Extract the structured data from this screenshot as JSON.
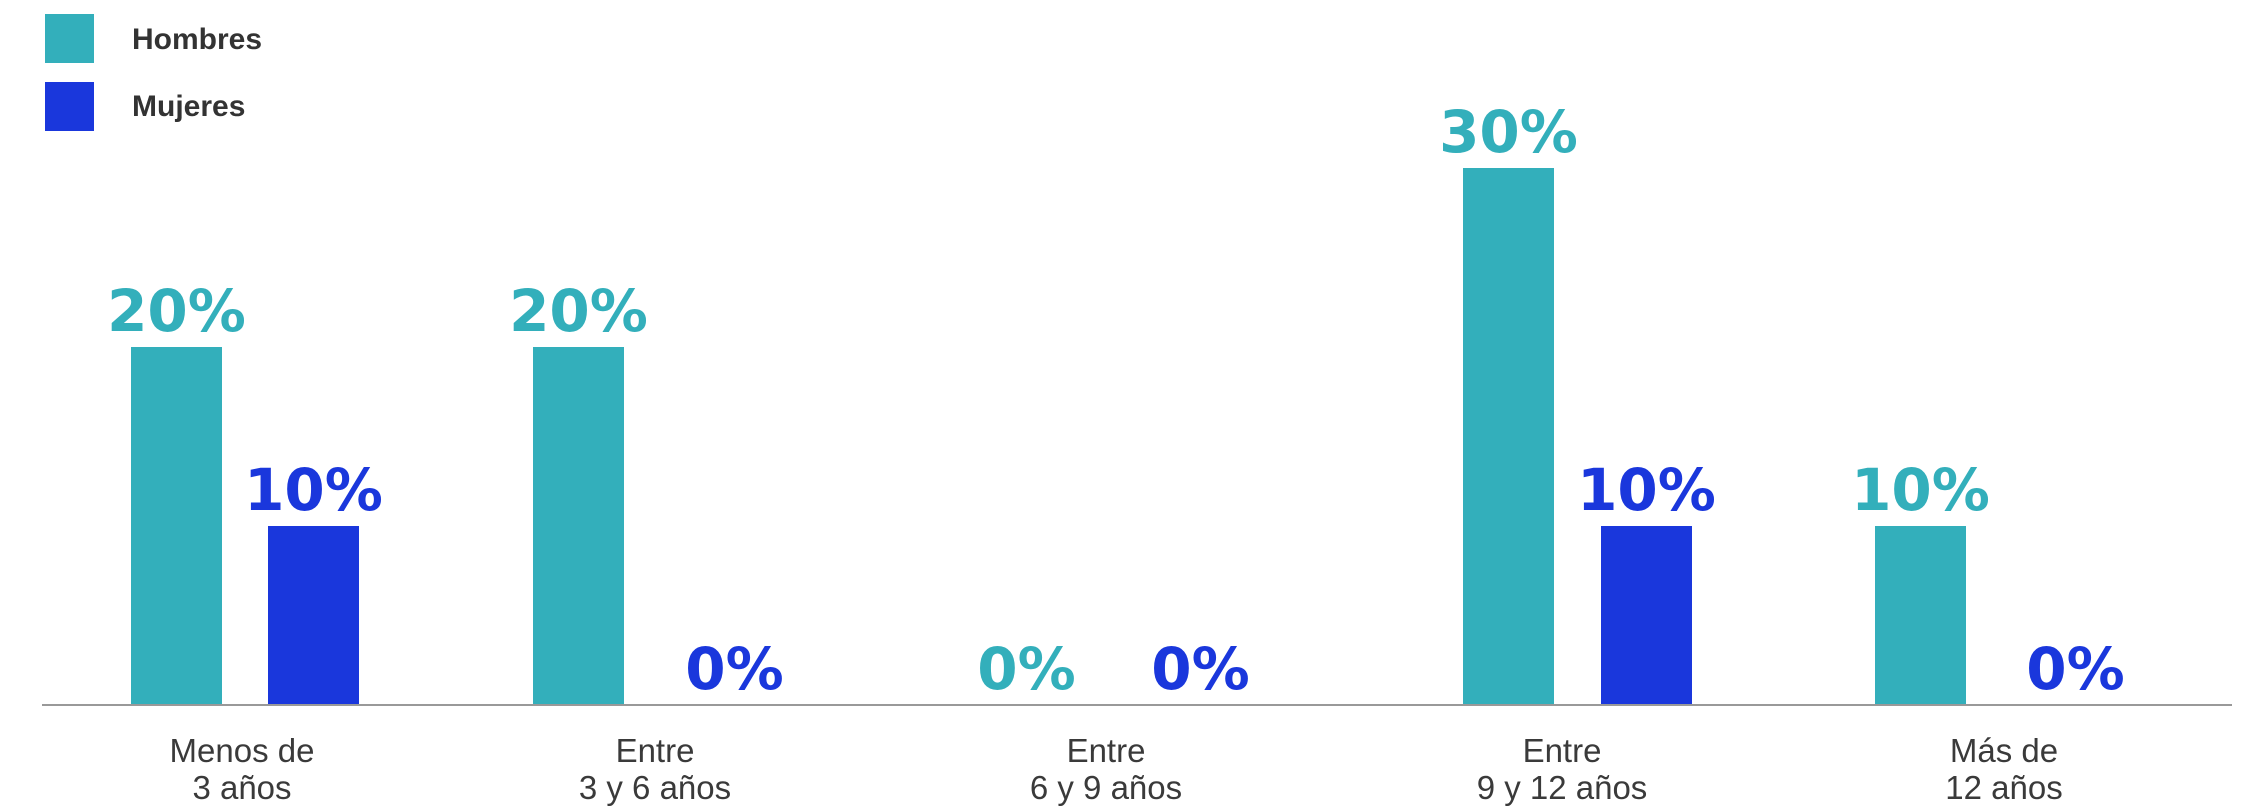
{
  "chart_data": {
    "type": "bar",
    "categories": [
      [
        "Menos de",
        "3 años"
      ],
      [
        "Entre",
        "3 y 6 años"
      ],
      [
        "Entre",
        "6 y 9 años"
      ],
      [
        "Entre",
        "9 y 12 años"
      ],
      [
        "Más de",
        "12 años"
      ]
    ],
    "series": [
      {
        "name": "Hombres",
        "values": [
          20,
          20,
          0,
          30,
          10
        ],
        "labels": [
          "20%",
          "20%",
          "0%",
          "30%",
          "10%"
        ],
        "color": "#33afbb"
      },
      {
        "name": "Mujeres",
        "values": [
          10,
          0,
          0,
          10,
          0
        ],
        "labels": [
          "10%",
          "0%",
          "0%",
          "10%",
          "0%"
        ],
        "color": "#1a37dc"
      }
    ],
    "ylim": [
      0,
      30
    ],
    "grid": false,
    "legend": "top-left",
    "axis_color": "#999999"
  }
}
